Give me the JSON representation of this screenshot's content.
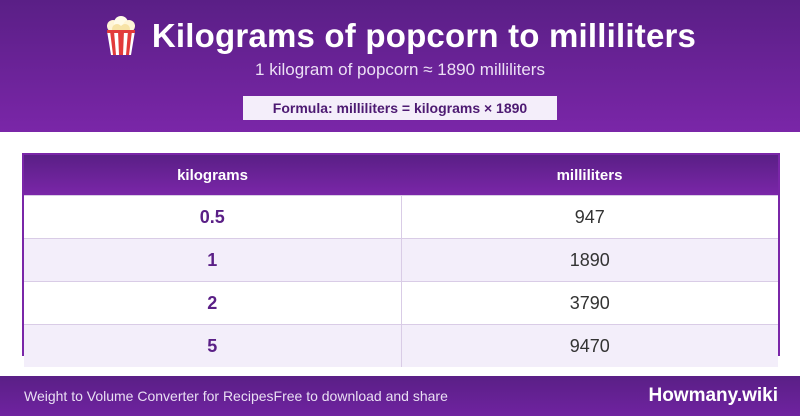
{
  "header": {
    "icon": "popcorn-icon",
    "title": "Kilograms of popcorn to milliliters",
    "subtitle": "1 kilogram of popcorn ≈ 1890 milliliters",
    "formula": "Formula: milliliters = kilograms × 1890"
  },
  "table": {
    "columns": [
      "kilograms",
      "milliliters"
    ],
    "rows": [
      [
        "0.5",
        "947"
      ],
      [
        "1",
        "1890"
      ],
      [
        "2",
        "3790"
      ],
      [
        "5",
        "9470"
      ]
    ]
  },
  "footer": {
    "left_text": "Weight to Volume Converter for Recipes",
    "middle_text": "Free to download and share",
    "brand": "Howmany.wiki"
  },
  "colors": {
    "primary": "#5a1f86",
    "primary_light": "#7a26a8",
    "row_alt": "#f3eefa"
  }
}
